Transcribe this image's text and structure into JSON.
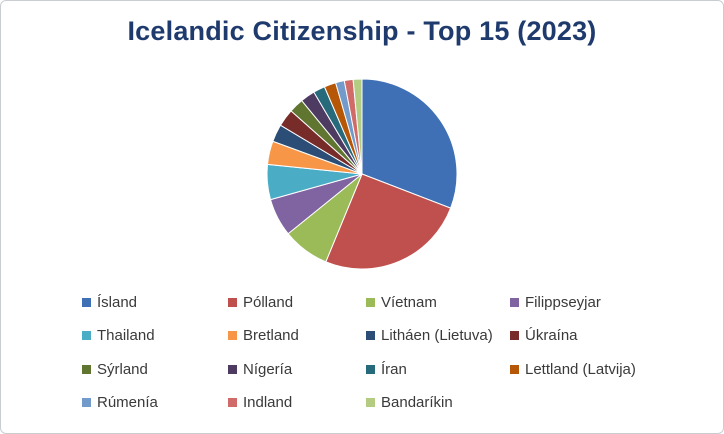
{
  "chart_data": {
    "type": "pie",
    "title": "Icelandic Citizenship - Top 15 (2023)",
    "legend_position": "bottom",
    "slices": [
      {
        "label": "Ísland",
        "value": 31.0,
        "color": "#3f6fb5"
      },
      {
        "label": "Pólland",
        "value": 25.5,
        "color": "#c0504d"
      },
      {
        "label": "Víetnam",
        "value": 8.0,
        "color": "#9bbb59"
      },
      {
        "label": "Filippseyjar",
        "value": 6.5,
        "color": "#8064a2"
      },
      {
        "label": "Thailand",
        "value": 6.0,
        "color": "#4bacc6"
      },
      {
        "label": "Bretland",
        "value": 4.0,
        "color": "#f79646"
      },
      {
        "label": "Litháen (Lietuva)",
        "value": 3.0,
        "color": "#2c4d75"
      },
      {
        "label": "Úkraína",
        "value": 3.0,
        "color": "#772c2a"
      },
      {
        "label": "Sýrland",
        "value": 2.5,
        "color": "#5f7530"
      },
      {
        "label": "Nígería",
        "value": 2.5,
        "color": "#4d3b62"
      },
      {
        "label": "Íran",
        "value": 2.0,
        "color": "#276a7c"
      },
      {
        "label": "Lettland (Latvija)",
        "value": 2.0,
        "color": "#b65708"
      },
      {
        "label": "Rúmenía",
        "value": 1.5,
        "color": "#729aca"
      },
      {
        "label": "Indland",
        "value": 1.5,
        "color": "#d16b6a"
      },
      {
        "label": "Bandaríkin",
        "value": 1.5,
        "color": "#b3cc82"
      }
    ]
  }
}
